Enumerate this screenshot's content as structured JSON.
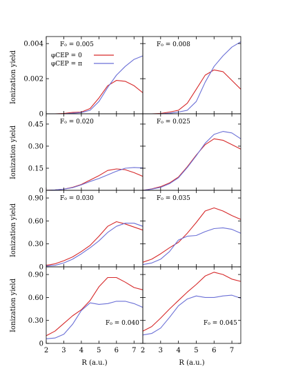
{
  "figure": {
    "ylabel": "Ionization yield",
    "xlabel": "R (a.u.)",
    "legend": {
      "entries": [
        {
          "label": "φCEP = 0",
          "color": "#d62728"
        },
        {
          "label": "φCEP = π",
          "color": "#6a6fd6"
        }
      ]
    }
  },
  "chart_data": [
    {
      "type": "line",
      "panel_label": "F₀ = 0.005",
      "x": [
        2,
        2.5,
        3,
        3.5,
        4,
        4.5,
        5,
        5.5,
        6,
        6.5,
        7,
        7.5
      ],
      "xlim": [
        2,
        7.5
      ],
      "ylim": [
        0,
        0.0044
      ],
      "yticks": [
        "0",
        "0.002",
        "0.004"
      ],
      "ytick_values": [
        0,
        0.002,
        0.004
      ],
      "series": [
        {
          "name": "φCEP = 0",
          "color": "#d62728",
          "values": [
            0,
            0,
            2e-05,
            8e-05,
            0.0001,
            0.0003,
            0.0009,
            0.0016,
            0.0019,
            0.00185,
            0.0016,
            0.0012
          ]
        },
        {
          "name": "φCEP = π",
          "color": "#6a6fd6",
          "values": [
            0,
            0,
            0,
            3e-05,
            7e-05,
            0.0002,
            0.0007,
            0.0015,
            0.0022,
            0.0027,
            0.0031,
            0.0033
          ]
        }
      ]
    },
    {
      "type": "line",
      "panel_label": "F₀ = 0.008",
      "x": [
        2,
        2.5,
        3,
        3.5,
        4,
        4.5,
        5,
        5.5,
        6,
        6.5,
        7,
        7.5
      ],
      "xlim": [
        2,
        7.5
      ],
      "ylim": [
        0,
        0.0044
      ],
      "yticks": [],
      "ytick_values": [
        0,
        0.002,
        0.004
      ],
      "series": [
        {
          "name": "φCEP = 0",
          "color": "#d62728",
          "values": [
            0,
            0,
            2e-05,
            0.0001,
            0.0002,
            0.0006,
            0.0014,
            0.0022,
            0.0025,
            0.0024,
            0.0019,
            0.0014
          ]
        },
        {
          "name": "φCEP = π",
          "color": "#6a6fd6",
          "values": [
            0,
            0,
            0,
            3e-05,
            0.0001,
            0.0002,
            0.0007,
            0.0018,
            0.0027,
            0.0033,
            0.0038,
            0.0041
          ]
        }
      ]
    },
    {
      "type": "line",
      "panel_label": "F₀ = 0.020",
      "x": [
        2,
        2.5,
        3,
        3.5,
        4,
        4.5,
        5,
        5.5,
        6,
        6.5,
        7,
        7.5
      ],
      "xlim": [
        2,
        7.5
      ],
      "ylim": [
        0,
        0.52
      ],
      "yticks": [
        "0",
        "0.15",
        "0.30",
        "0.45"
      ],
      "ytick_values": [
        0,
        0.15,
        0.3,
        0.45
      ],
      "series": [
        {
          "name": "φCEP = 0",
          "color": "#d62728",
          "values": [
            0,
            0.003,
            0.008,
            0.02,
            0.04,
            0.07,
            0.1,
            0.135,
            0.145,
            0.14,
            0.12,
            0.095
          ]
        },
        {
          "name": "φCEP = π",
          "color": "#6a6fd6",
          "values": [
            0,
            0.003,
            0.008,
            0.018,
            0.037,
            0.06,
            0.08,
            0.105,
            0.13,
            0.15,
            0.155,
            0.152
          ]
        }
      ]
    },
    {
      "type": "line",
      "panel_label": "F₀ = 0.025",
      "x": [
        2,
        2.5,
        3,
        3.5,
        4,
        4.5,
        5,
        5.5,
        6,
        6.5,
        7,
        7.5
      ],
      "xlim": [
        2,
        7.5
      ],
      "ylim": [
        0,
        0.52
      ],
      "yticks": [],
      "ytick_values": [
        0,
        0.15,
        0.3,
        0.45
      ],
      "series": [
        {
          "name": "φCEP = 0",
          "color": "#d62728",
          "values": [
            0,
            0.01,
            0.025,
            0.05,
            0.09,
            0.16,
            0.24,
            0.31,
            0.35,
            0.34,
            0.31,
            0.28
          ]
        },
        {
          "name": "φCEP = π",
          "color": "#6a6fd6",
          "values": [
            0,
            0.008,
            0.02,
            0.045,
            0.085,
            0.155,
            0.235,
            0.32,
            0.38,
            0.4,
            0.39,
            0.35
          ]
        }
      ]
    },
    {
      "type": "line",
      "panel_label": "F₀ = 0.030",
      "x": [
        2,
        2.5,
        3,
        3.5,
        4,
        4.5,
        5,
        5.5,
        6,
        6.5,
        7,
        7.5
      ],
      "xlim": [
        2,
        7.5
      ],
      "ylim": [
        0,
        1.0
      ],
      "yticks": [
        "0",
        "0.30",
        "0.60",
        "0.90"
      ],
      "ytick_values": [
        0,
        0.3,
        0.6,
        0.9
      ],
      "series": [
        {
          "name": "φCEP = 0",
          "color": "#d62728",
          "values": [
            0.02,
            0.04,
            0.08,
            0.13,
            0.2,
            0.28,
            0.4,
            0.53,
            0.59,
            0.56,
            0.52,
            0.48
          ]
        },
        {
          "name": "φCEP = π",
          "color": "#6a6fd6",
          "values": [
            0.01,
            0.02,
            0.05,
            0.1,
            0.17,
            0.25,
            0.34,
            0.45,
            0.53,
            0.57,
            0.57,
            0.53
          ]
        }
      ]
    },
    {
      "type": "line",
      "panel_label": "F₀ = 0.035",
      "x": [
        2,
        2.5,
        3,
        3.5,
        4,
        4.5,
        5,
        5.5,
        6,
        6.5,
        7,
        7.5
      ],
      "xlim": [
        2,
        7.5
      ],
      "ylim": [
        0,
        1.0
      ],
      "yticks": [],
      "ytick_values": [
        0,
        0.3,
        0.6,
        0.9
      ],
      "series": [
        {
          "name": "φCEP = 0",
          "color": "#d62728",
          "values": [
            0.06,
            0.1,
            0.17,
            0.25,
            0.32,
            0.44,
            0.58,
            0.73,
            0.77,
            0.73,
            0.67,
            0.62
          ]
        },
        {
          "name": "φCEP = π",
          "color": "#6a6fd6",
          "values": [
            0.03,
            0.05,
            0.1,
            0.2,
            0.35,
            0.4,
            0.41,
            0.46,
            0.5,
            0.51,
            0.49,
            0.44
          ]
        }
      ]
    },
    {
      "type": "line",
      "panel_label": "F₀ = 0.040",
      "x": [
        2,
        2.5,
        3,
        3.5,
        4,
        4.5,
        5,
        5.5,
        6,
        6.5,
        7,
        7.5
      ],
      "xlim": [
        2,
        7.5
      ],
      "ylim": [
        0,
        1.0
      ],
      "yticks": [
        "0",
        "0.30",
        "0.60",
        "0.90"
      ],
      "ytick_values": [
        0,
        0.3,
        0.6,
        0.9
      ],
      "series": [
        {
          "name": "φCEP = 0",
          "color": "#d62728",
          "values": [
            0.1,
            0.16,
            0.26,
            0.36,
            0.44,
            0.56,
            0.74,
            0.86,
            0.86,
            0.8,
            0.73,
            0.7
          ]
        },
        {
          "name": "φCEP = π",
          "color": "#6a6fd6",
          "values": [
            0.06,
            0.07,
            0.12,
            0.25,
            0.43,
            0.53,
            0.51,
            0.52,
            0.55,
            0.55,
            0.52,
            0.47
          ]
        }
      ]
    },
    {
      "type": "line",
      "panel_label": "F₀ = 0.045",
      "x": [
        2,
        2.5,
        3,
        3.5,
        4,
        4.5,
        5,
        5.5,
        6,
        6.5,
        7,
        7.5
      ],
      "xlim": [
        2,
        7.5
      ],
      "ylim": [
        0,
        1.0
      ],
      "yticks": [],
      "ytick_values": [
        0,
        0.3,
        0.6,
        0.9
      ],
      "series": [
        {
          "name": "φCEP = 0",
          "color": "#d62728",
          "values": [
            0.16,
            0.22,
            0.33,
            0.45,
            0.56,
            0.67,
            0.77,
            0.88,
            0.93,
            0.9,
            0.84,
            0.81
          ]
        },
        {
          "name": "φCEP = π",
          "color": "#6a6fd6",
          "values": [
            0.11,
            0.13,
            0.2,
            0.34,
            0.49,
            0.58,
            0.62,
            0.6,
            0.6,
            0.62,
            0.63,
            0.59
          ]
        }
      ]
    }
  ],
  "xticks": [
    "2",
    "3",
    "4",
    "5",
    "6",
    "7"
  ],
  "xtick_values": [
    2,
    3,
    4,
    5,
    6,
    7
  ]
}
